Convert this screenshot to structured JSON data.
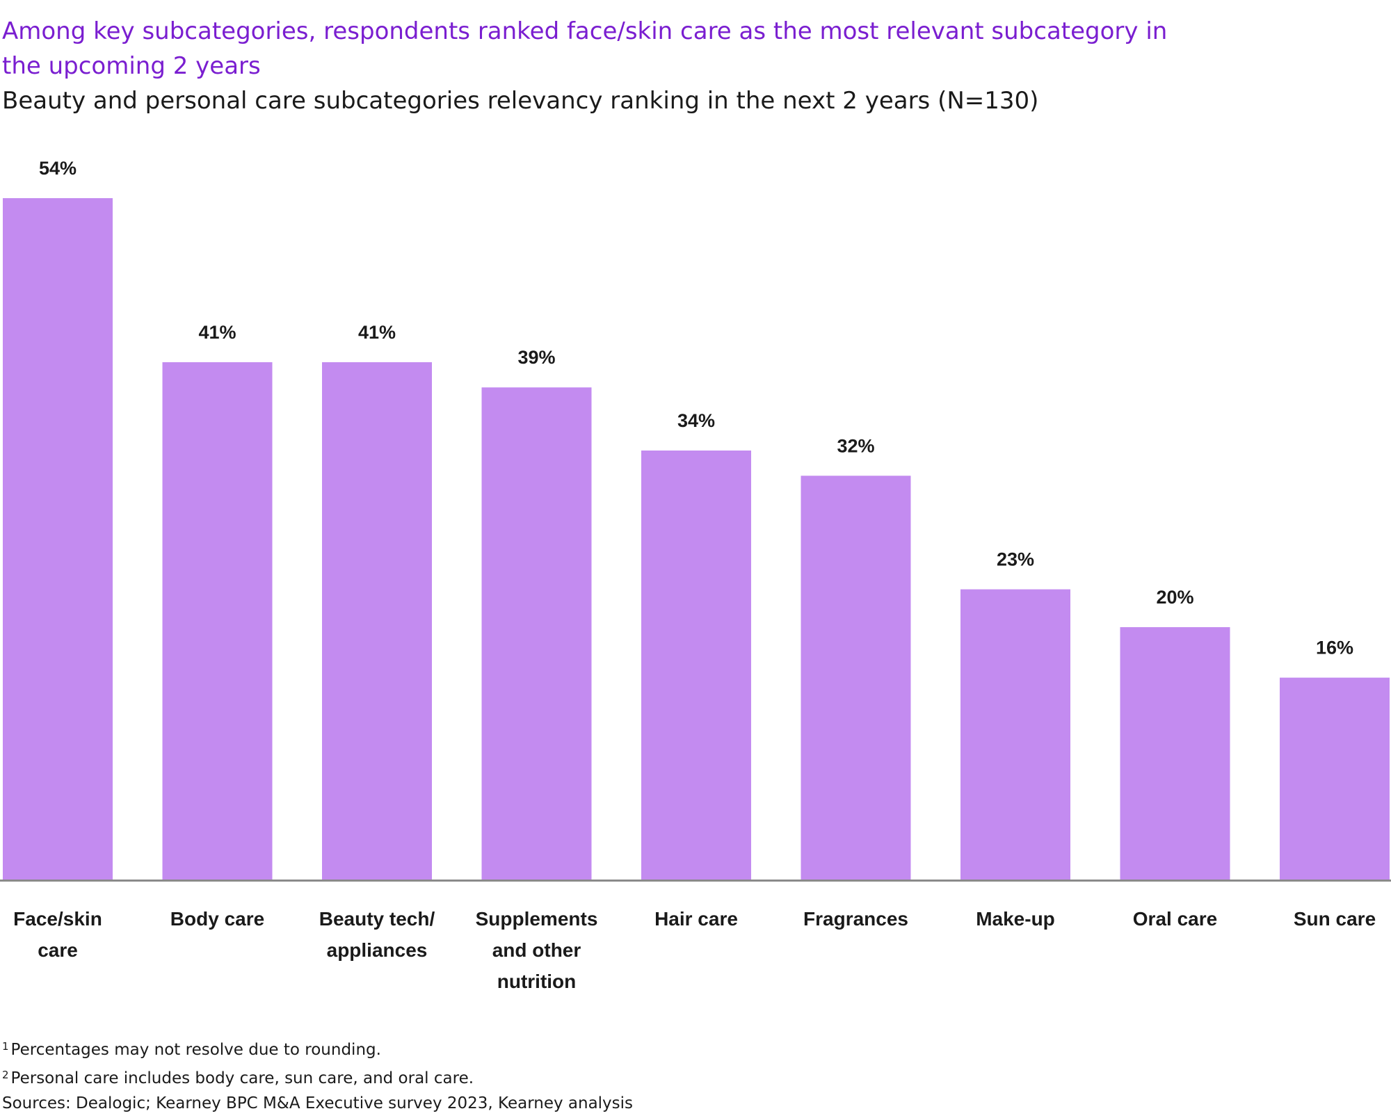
{
  "headline": "Among key subcategories, respondents ranked face/skin care as the most relevant subcategory in the upcoming 2 years",
  "subtitle": "Beauty and personal care subcategories relevancy ranking in the next 2 years (N=130)",
  "colors": {
    "bar": "#c38bf0",
    "headline": "#7a1ed0",
    "axis": "#8a8a8a",
    "text": "#1a1a1a"
  },
  "chart_data": {
    "type": "bar",
    "title": "Beauty and personal care subcategories relevancy ranking in the next 2 years (N=130)",
    "categories": [
      [
        "Face/skin",
        "care"
      ],
      [
        "Body care"
      ],
      [
        "Beauty tech/",
        "appliances"
      ],
      [
        "Supplements",
        "and other",
        "nutrition"
      ],
      [
        "Hair care"
      ],
      [
        "Fragrances"
      ],
      [
        "Make-up"
      ],
      [
        "Oral care"
      ],
      [
        "Sun care"
      ]
    ],
    "values": [
      54,
      41,
      41,
      39,
      34,
      32,
      23,
      20,
      16
    ],
    "value_labels": [
      "54%",
      "41%",
      "41%",
      "39%",
      "34%",
      "32%",
      "23%",
      "20%",
      "16%"
    ],
    "unit": "%",
    "ylim": [
      0,
      54
    ],
    "grid": false,
    "legend": "none",
    "xlabel": "",
    "ylabel": ""
  },
  "footnotes": [
    {
      "marker": "1",
      "text": "Percentages may not resolve due to rounding."
    },
    {
      "marker": "2",
      "text": "Personal care includes body care, sun care, and oral care."
    },
    {
      "marker": "",
      "text": "Sources: Dealogic; Kearney BPC M&A Executive survey 2023, Kearney analysis"
    }
  ]
}
